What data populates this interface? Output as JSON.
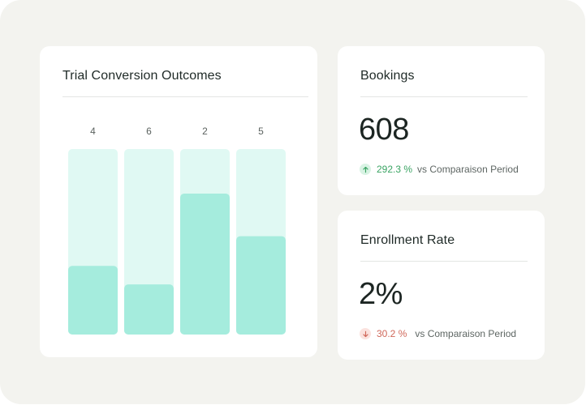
{
  "chart_card": {
    "title": "Trial Conversion Outcomes"
  },
  "chart_data": {
    "type": "bar",
    "title": "Trial Conversion Outcomes",
    "values": [
      4,
      6,
      2,
      5
    ],
    "data_labels": [
      "4",
      "6",
      "2",
      "5"
    ],
    "fill_fractions": [
      0.37,
      0.27,
      0.76,
      0.53
    ],
    "colors": {
      "track": "#e0f9f3",
      "fill": "#a5ecdd"
    }
  },
  "bookings": {
    "title": "Bookings",
    "value": "608",
    "delta": "292.3 %",
    "delta_direction": "up",
    "comparison": "vs Comparaison Period"
  },
  "enrollment": {
    "title": "Enrollment Rate",
    "value": "2%",
    "delta": "30.2 %",
    "delta_direction": "down",
    "comparison": "vs Comparaison Period"
  },
  "colors": {
    "background": "#f3f3ef",
    "card": "#ffffff",
    "positive": "#3aa463",
    "negative": "#d0685a"
  }
}
